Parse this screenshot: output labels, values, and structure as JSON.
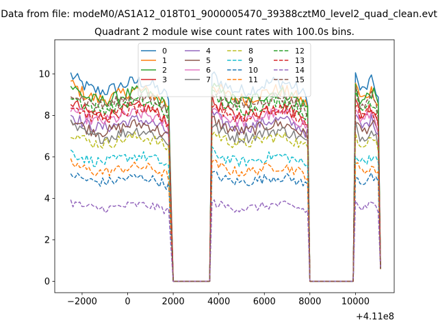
{
  "suptitle": "Data from file: modeM0/AS1A12_018T01_9000005470_39388cztM0_level2_quad_clean.evt",
  "chart_data": {
    "type": "line",
    "title": "Quadrant 2 module wise count rates with 100.0s bins.",
    "xlabel": "",
    "ylabel": "",
    "x_offset_text": "+4.11e8",
    "x_offset": 411000000,
    "xlim": [
      -3200,
      11700
    ],
    "ylim": [
      -0.55,
      11.65
    ],
    "xticks": [
      -2000,
      0,
      2000,
      4000,
      6000,
      8000,
      10000
    ],
    "xtick_labels": [
      "−2000",
      "0",
      "2000",
      "4000",
      "6000",
      "8000",
      "10000"
    ],
    "yticks": [
      0,
      2,
      4,
      6,
      8,
      10
    ],
    "ytick_labels": [
      "0",
      "2",
      "4",
      "6",
      "8",
      "10"
    ],
    "grid": false,
    "legend": {
      "placement": "upper center",
      "columns": 4
    },
    "x_start": -2500,
    "bin_width": 100,
    "segments": [
      {
        "x_from": -2500,
        "x_to": 1800,
        "state": "on",
        "peak": 9.8
      },
      {
        "x_from": 1900,
        "x_to": 1900,
        "state": "ramp_down"
      },
      {
        "x_from": 2000,
        "x_to": 3600,
        "state": "off"
      },
      {
        "x_from": 3700,
        "x_to": 7900,
        "state": "on",
        "peak": 9.9
      },
      {
        "x_from": 8000,
        "x_to": 9900,
        "state": "off"
      },
      {
        "x_from": 10000,
        "x_to": 11000,
        "state": "on",
        "peak": 10.1
      },
      {
        "x_from": 11100,
        "x_to": 11100,
        "state": "end",
        "level": 0.6
      }
    ],
    "series": [
      {
        "name": "0",
        "color": "#1f77b4",
        "dash": "solid",
        "level": 9.4
      },
      {
        "name": "1",
        "color": "#ff7f0e",
        "dash": "solid",
        "level": 9.0
      },
      {
        "name": "2",
        "color": "#2ca02c",
        "dash": "solid",
        "level": 8.9
      },
      {
        "name": "3",
        "color": "#d62728",
        "dash": "solid",
        "level": 8.2
      },
      {
        "name": "4",
        "color": "#9467bd",
        "dash": "solid",
        "level": 7.6
      },
      {
        "name": "5",
        "color": "#8c564b",
        "dash": "solid",
        "level": 7.4
      },
      {
        "name": "6",
        "color": "#e377c2",
        "dash": "solid",
        "level": 7.9
      },
      {
        "name": "7",
        "color": "#7f7f7f",
        "dash": "solid",
        "level": 7.1
      },
      {
        "name": "8",
        "color": "#bcbd22",
        "dash": "dashed",
        "level": 6.8
      },
      {
        "name": "9",
        "color": "#17becf",
        "dash": "dashed",
        "level": 5.9
      },
      {
        "name": "10",
        "color": "#1f77b4",
        "dash": "dashed",
        "level": 4.9
      },
      {
        "name": "11",
        "color": "#ff7f0e",
        "dash": "dashed",
        "level": 5.4
      },
      {
        "name": "12",
        "color": "#2ca02c",
        "dash": "dashed",
        "level": 8.5
      },
      {
        "name": "13",
        "color": "#d62728",
        "dash": "dashed",
        "level": 8.1
      },
      {
        "name": "14",
        "color": "#9467bd",
        "dash": "dashed",
        "level": 3.6
      },
      {
        "name": "15",
        "color": "#8c564b",
        "dash": "dashed",
        "level": 8.7
      }
    ]
  }
}
